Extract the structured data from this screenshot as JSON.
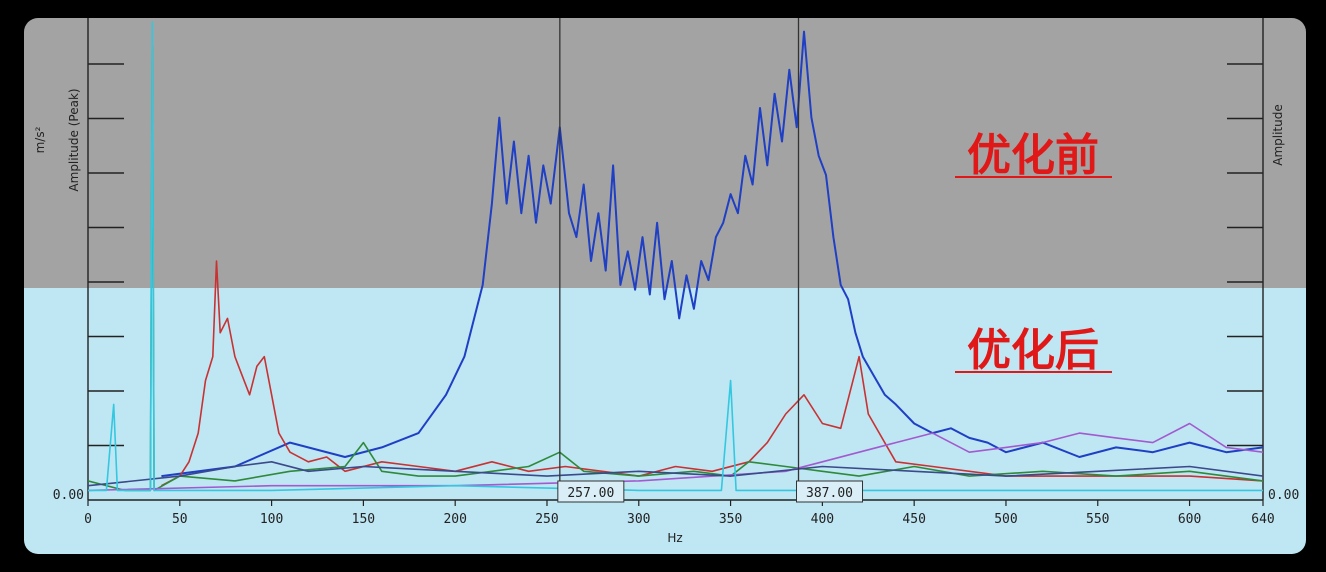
{
  "chart_data": {
    "type": "line",
    "xlabel": "Hz",
    "ylabel_left": "Amplitude (Peak)",
    "yunit_left": "m/s²",
    "ylabel_right": "Amplitude",
    "zero_label_left": "0.00",
    "zero_label_right": "0.00",
    "xlim": [
      0,
      640
    ],
    "xticks": [
      "0",
      "50",
      "100",
      "150",
      "200",
      "250",
      "300",
      "350",
      "400",
      "450",
      "500",
      "550",
      "600",
      "640"
    ],
    "cursors": [
      {
        "x": 257,
        "label": "257.00"
      },
      {
        "x": 387,
        "label": "387.00"
      }
    ],
    "annotations": {
      "before": "优化前",
      "after": "优化后"
    },
    "colors": {
      "panel_before": "#a3a3a3",
      "panel_after": "#bfe6f3",
      "annotation": "#e01818",
      "before_series": "#1f3fc4"
    },
    "series": [
      {
        "color": "#1f3fc4",
        "points": [
          [
            40,
            0.05
          ],
          [
            80,
            0.07
          ],
          [
            110,
            0.12
          ],
          [
            140,
            0.09
          ],
          [
            160,
            0.11
          ],
          [
            180,
            0.14
          ],
          [
            195,
            0.22
          ],
          [
            205,
            0.3
          ],
          [
            215,
            0.45
          ],
          [
            220,
            0.62
          ],
          [
            224,
            0.8
          ],
          [
            228,
            0.62
          ],
          [
            232,
            0.75
          ],
          [
            236,
            0.6
          ],
          [
            240,
            0.72
          ],
          [
            244,
            0.58
          ],
          [
            248,
            0.7
          ],
          [
            252,
            0.62
          ],
          [
            257,
            0.78
          ],
          [
            262,
            0.6
          ],
          [
            266,
            0.55
          ],
          [
            270,
            0.66
          ],
          [
            274,
            0.5
          ],
          [
            278,
            0.6
          ],
          [
            282,
            0.48
          ],
          [
            286,
            0.7
          ],
          [
            290,
            0.45
          ],
          [
            294,
            0.52
          ],
          [
            298,
            0.44
          ],
          [
            302,
            0.55
          ],
          [
            306,
            0.43
          ],
          [
            310,
            0.58
          ],
          [
            314,
            0.42
          ],
          [
            318,
            0.5
          ],
          [
            322,
            0.38
          ],
          [
            326,
            0.47
          ],
          [
            330,
            0.4
          ],
          [
            334,
            0.5
          ],
          [
            338,
            0.46
          ],
          [
            342,
            0.55
          ],
          [
            346,
            0.58
          ],
          [
            350,
            0.64
          ],
          [
            354,
            0.6
          ],
          [
            358,
            0.72
          ],
          [
            362,
            0.66
          ],
          [
            366,
            0.82
          ],
          [
            370,
            0.7
          ],
          [
            374,
            0.85
          ],
          [
            378,
            0.75
          ],
          [
            382,
            0.9
          ],
          [
            386,
            0.78
          ],
          [
            390,
            0.98
          ],
          [
            394,
            0.8
          ],
          [
            398,
            0.72
          ],
          [
            402,
            0.68
          ],
          [
            406,
            0.55
          ],
          [
            410,
            0.45
          ],
          [
            414,
            0.42
          ],
          [
            418,
            0.35
          ],
          [
            422,
            0.3
          ],
          [
            428,
            0.26
          ],
          [
            434,
            0.22
          ],
          [
            440,
            0.2
          ],
          [
            450,
            0.16
          ],
          [
            460,
            0.14
          ],
          [
            470,
            0.15
          ],
          [
            480,
            0.13
          ],
          [
            490,
            0.12
          ],
          [
            500,
            0.1
          ],
          [
            520,
            0.12
          ],
          [
            540,
            0.09
          ],
          [
            560,
            0.11
          ],
          [
            580,
            0.1
          ],
          [
            600,
            0.12
          ],
          [
            620,
            0.1
          ],
          [
            640,
            0.11
          ]
        ]
      },
      {
        "color": "#c83232",
        "points": [
          [
            40,
            0.03
          ],
          [
            50,
            0.05
          ],
          [
            55,
            0.08
          ],
          [
            60,
            0.14
          ],
          [
            64,
            0.25
          ],
          [
            68,
            0.3
          ],
          [
            70,
            0.5
          ],
          [
            72,
            0.35
          ],
          [
            76,
            0.38
          ],
          [
            80,
            0.3
          ],
          [
            84,
            0.26
          ],
          [
            88,
            0.22
          ],
          [
            92,
            0.28
          ],
          [
            96,
            0.3
          ],
          [
            100,
            0.22
          ],
          [
            104,
            0.14
          ],
          [
            110,
            0.1
          ],
          [
            120,
            0.08
          ],
          [
            130,
            0.09
          ],
          [
            140,
            0.06
          ],
          [
            160,
            0.08
          ],
          [
            180,
            0.07
          ],
          [
            200,
            0.06
          ],
          [
            220,
            0.08
          ],
          [
            240,
            0.06
          ],
          [
            260,
            0.07
          ],
          [
            280,
            0.06
          ],
          [
            300,
            0.05
          ],
          [
            320,
            0.07
          ],
          [
            340,
            0.06
          ],
          [
            360,
            0.08
          ],
          [
            370,
            0.12
          ],
          [
            380,
            0.18
          ],
          [
            390,
            0.22
          ],
          [
            400,
            0.16
          ],
          [
            410,
            0.15
          ],
          [
            420,
            0.3
          ],
          [
            425,
            0.18
          ],
          [
            440,
            0.08
          ],
          [
            460,
            0.07
          ],
          [
            500,
            0.05
          ],
          [
            550,
            0.05
          ],
          [
            600,
            0.05
          ],
          [
            640,
            0.04
          ]
        ]
      },
      {
        "color": "#2e8a3a",
        "points": [
          [
            0,
            0.04
          ],
          [
            20,
            0.02
          ],
          [
            34,
            0.02
          ],
          [
            35,
            0.95
          ],
          [
            36,
            0.02
          ],
          [
            50,
            0.05
          ],
          [
            80,
            0.04
          ],
          [
            110,
            0.06
          ],
          [
            140,
            0.07
          ],
          [
            150,
            0.12
          ],
          [
            160,
            0.06
          ],
          [
            180,
            0.05
          ],
          [
            200,
            0.05
          ],
          [
            220,
            0.06
          ],
          [
            240,
            0.07
          ],
          [
            257,
            0.1
          ],
          [
            270,
            0.06
          ],
          [
            300,
            0.05
          ],
          [
            330,
            0.06
          ],
          [
            350,
            0.05
          ],
          [
            360,
            0.08
          ],
          [
            380,
            0.07
          ],
          [
            400,
            0.06
          ],
          [
            420,
            0.05
          ],
          [
            450,
            0.07
          ],
          [
            480,
            0.05
          ],
          [
            520,
            0.06
          ],
          [
            560,
            0.05
          ],
          [
            600,
            0.06
          ],
          [
            640,
            0.04
          ]
        ]
      },
      {
        "color": "#a25ad0",
        "points": [
          [
            0,
            0.02
          ],
          [
            100,
            0.03
          ],
          [
            200,
            0.03
          ],
          [
            300,
            0.04
          ],
          [
            380,
            0.06
          ],
          [
            400,
            0.08
          ],
          [
            420,
            0.1
          ],
          [
            440,
            0.12
          ],
          [
            460,
            0.14
          ],
          [
            480,
            0.1
          ],
          [
            500,
            0.11
          ],
          [
            520,
            0.12
          ],
          [
            540,
            0.14
          ],
          [
            560,
            0.13
          ],
          [
            580,
            0.12
          ],
          [
            600,
            0.16
          ],
          [
            620,
            0.11
          ],
          [
            640,
            0.1
          ]
        ]
      },
      {
        "color": "#3a4a8a",
        "points": [
          [
            0,
            0.03
          ],
          [
            50,
            0.05
          ],
          [
            80,
            0.07
          ],
          [
            100,
            0.08
          ],
          [
            120,
            0.06
          ],
          [
            150,
            0.07
          ],
          [
            200,
            0.06
          ],
          [
            250,
            0.05
          ],
          [
            300,
            0.06
          ],
          [
            350,
            0.05
          ],
          [
            400,
            0.07
          ],
          [
            450,
            0.06
          ],
          [
            500,
            0.05
          ],
          [
            550,
            0.06
          ],
          [
            600,
            0.07
          ],
          [
            640,
            0.05
          ]
        ]
      },
      {
        "color": "#33c8e0",
        "points": [
          [
            0,
            0.02
          ],
          [
            10,
            0.02
          ],
          [
            14,
            0.2
          ],
          [
            16,
            0.02
          ],
          [
            34,
            0.02
          ],
          [
            35,
            1.0
          ],
          [
            36,
            0.02
          ],
          [
            100,
            0.02
          ],
          [
            200,
            0.03
          ],
          [
            300,
            0.02
          ],
          [
            345,
            0.02
          ],
          [
            350,
            0.25
          ],
          [
            353,
            0.02
          ],
          [
            400,
            0.02
          ],
          [
            500,
            0.02
          ],
          [
            640,
            0.02
          ]
        ]
      }
    ]
  }
}
